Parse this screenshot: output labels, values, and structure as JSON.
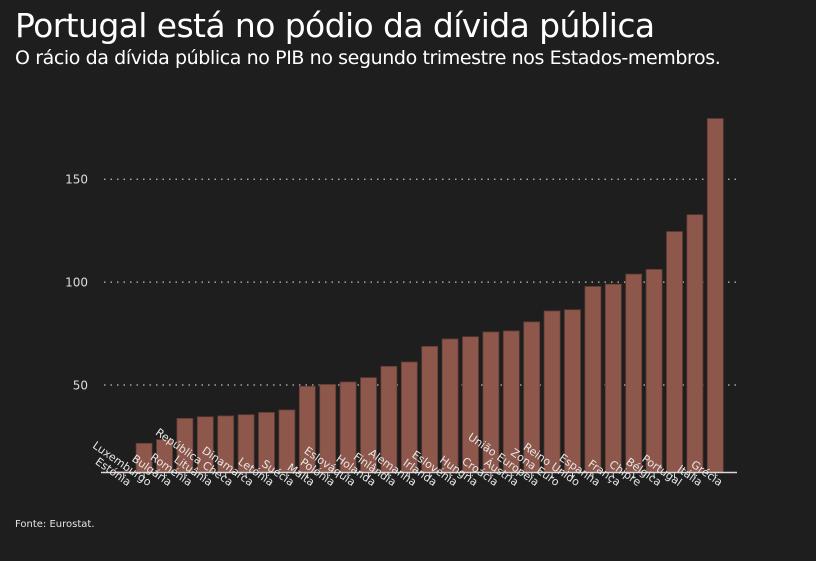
{
  "header": {
    "title": "Portugal está no pódio da dívida pública",
    "subtitle": "O rácio da dívida pública no PIB no segundo trimestre nos Estados-membros."
  },
  "footer": {
    "source": "Fonte: Eurostat."
  },
  "colors": {
    "background": "#1e1e1e",
    "bar_fill": "#8e574b",
    "bar_stroke": "#5e3a32",
    "grid": "#bdbdbd",
    "axis": "#d8d8d8"
  },
  "chart_data": {
    "type": "bar",
    "title": "Portugal está no pódio da dívida pública",
    "subtitle": "O rácio da dívida pública no PIB no segundo trimestre nos Estados-membros.",
    "xlabel": "",
    "ylabel": "",
    "ylim": [
      7.5,
      185
    ],
    "yticks": [
      50,
      100,
      150
    ],
    "grid": "horizontal-dotted",
    "legend": "none",
    "categories": [
      "Estónia",
      "Luxemburgo",
      "Bulgária",
      "Roménia",
      "Lituânia",
      "República Checa",
      "Dinamarca",
      "Letónia",
      "Suécia",
      "Malta",
      "Polónia",
      "Eslováquia",
      "Holanda",
      "Finlândia",
      "Alemanha",
      "Irlanda",
      "Eslovénia",
      "Hungria",
      "Croácia",
      "Áustria",
      "União Europeia",
      "Zona Euro",
      "Reino Unido",
      "Espanha",
      "França",
      "Chipre",
      "Bélgica",
      "Portugal",
      "Itália",
      "Grécia"
    ],
    "values": [
      8.1,
      21.7,
      23.5,
      33.8,
      34.6,
      35.0,
      35.6,
      36.7,
      37.9,
      49.4,
      50.3,
      51.5,
      53.6,
      59.1,
      61.2,
      68.8,
      72.4,
      73.5,
      75.8,
      76.3,
      80.7,
      86.0,
      86.6,
      97.9,
      99.0,
      103.9,
      106.2,
      124.6,
      132.8,
      179.5
    ],
    "source": "Fonte: Eurostat."
  }
}
